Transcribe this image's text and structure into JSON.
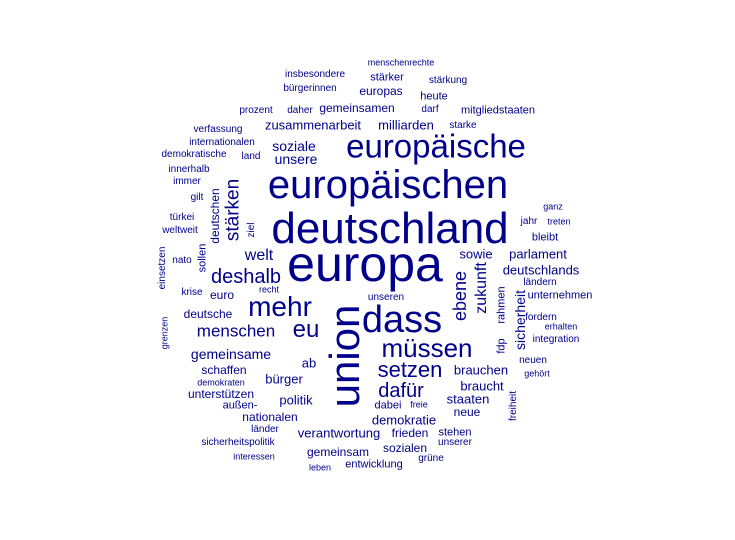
{
  "word_color": "#00008b",
  "background_color": "#ffffff",
  "words": [
    {
      "text": "europa",
      "rotated": false
    },
    {
      "text": "deutschland",
      "rotated": false
    },
    {
      "text": "europäischen",
      "rotated": false
    },
    {
      "text": "union",
      "rotated": true
    },
    {
      "text": "dass",
      "rotated": false
    },
    {
      "text": "europäische",
      "rotated": false
    },
    {
      "text": "müssen",
      "rotated": false
    },
    {
      "text": "mehr",
      "rotated": false
    },
    {
      "text": "eu",
      "rotated": false
    },
    {
      "text": "setzen",
      "rotated": false
    },
    {
      "text": "dafür",
      "rotated": false
    },
    {
      "text": "deshalb",
      "rotated": false
    },
    {
      "text": "stärken",
      "rotated": true
    },
    {
      "text": "menschen",
      "rotated": false
    },
    {
      "text": "ebene",
      "rotated": true
    },
    {
      "text": "zukunft",
      "rotated": true
    },
    {
      "text": "welt",
      "rotated": false
    },
    {
      "text": "gemeinsame",
      "rotated": false
    },
    {
      "text": "sicherheit",
      "rotated": true
    },
    {
      "text": "soziale",
      "rotated": false
    },
    {
      "text": "unsere",
      "rotated": false
    },
    {
      "text": "zusammenarbeit",
      "rotated": false
    },
    {
      "text": "milliarden",
      "rotated": false
    },
    {
      "text": "sowie",
      "rotated": false
    },
    {
      "text": "parlament",
      "rotated": false
    },
    {
      "text": "deutschlands",
      "rotated": false
    },
    {
      "text": "brauchen",
      "rotated": false
    },
    {
      "text": "braucht",
      "rotated": false
    },
    {
      "text": "staaten",
      "rotated": false
    },
    {
      "text": "demokratie",
      "rotated": false
    },
    {
      "text": "verantwortung",
      "rotated": false
    },
    {
      "text": "frieden",
      "rotated": false
    },
    {
      "text": "bürger",
      "rotated": false
    },
    {
      "text": "politik",
      "rotated": false
    },
    {
      "text": "unterstützen",
      "rotated": false
    },
    {
      "text": "schaffen",
      "rotated": false
    },
    {
      "text": "nationalen",
      "rotated": false
    },
    {
      "text": "gemeinsam",
      "rotated": false
    },
    {
      "text": "sozialen",
      "rotated": false
    },
    {
      "text": "entwicklung",
      "rotated": false
    },
    {
      "text": "neue",
      "rotated": false
    },
    {
      "text": "deutsche",
      "rotated": false
    },
    {
      "text": "euro",
      "rotated": false
    },
    {
      "text": "ab",
      "rotated": false
    },
    {
      "text": "gemeinsamen",
      "rotated": false
    },
    {
      "text": "europas",
      "rotated": false
    },
    {
      "text": "heute",
      "rotated": false
    },
    {
      "text": "stärker",
      "rotated": false
    },
    {
      "text": "stärkung",
      "rotated": false
    },
    {
      "text": "insbesondere",
      "rotated": false
    },
    {
      "text": "bürgerinnen",
      "rotated": false
    },
    {
      "text": "menschenrechte",
      "rotated": false
    },
    {
      "text": "prozent",
      "rotated": false
    },
    {
      "text": "daher",
      "rotated": false
    },
    {
      "text": "darf",
      "rotated": false
    },
    {
      "text": "mitgliedstaaten",
      "rotated": false
    },
    {
      "text": "starke",
      "rotated": false
    },
    {
      "text": "verfassung",
      "rotated": false
    },
    {
      "text": "internationalen",
      "rotated": false
    },
    {
      "text": "demokratische",
      "rotated": false
    },
    {
      "text": "land",
      "rotated": false
    },
    {
      "text": "innerhalb",
      "rotated": false
    },
    {
      "text": "immer",
      "rotated": false
    },
    {
      "text": "gilt",
      "rotated": false
    },
    {
      "text": "deutschen",
      "rotated": true
    },
    {
      "text": "ziel",
      "rotated": true
    },
    {
      "text": "türkei",
      "rotated": false
    },
    {
      "text": "weltweit",
      "rotated": false
    },
    {
      "text": "nato",
      "rotated": false
    },
    {
      "text": "sollen",
      "rotated": true
    },
    {
      "text": "einsetzen",
      "rotated": true
    },
    {
      "text": "krise",
      "rotated": false
    },
    {
      "text": "recht",
      "rotated": false
    },
    {
      "text": "unseren",
      "rotated": false
    },
    {
      "text": "grenzen",
      "rotated": true
    },
    {
      "text": "demokraten",
      "rotated": false
    },
    {
      "text": "außen-",
      "rotated": false
    },
    {
      "text": "dabei",
      "rotated": false
    },
    {
      "text": "freie",
      "rotated": false
    },
    {
      "text": "länder",
      "rotated": false
    },
    {
      "text": "sicherheitspolitik",
      "rotated": false
    },
    {
      "text": "interessen",
      "rotated": false
    },
    {
      "text": "leben",
      "rotated": false
    },
    {
      "text": "stehen",
      "rotated": false
    },
    {
      "text": "unserer",
      "rotated": false
    },
    {
      "text": "grüne",
      "rotated": false
    },
    {
      "text": "ganz",
      "rotated": false
    },
    {
      "text": "treten",
      "rotated": false
    },
    {
      "text": "jahr",
      "rotated": false
    },
    {
      "text": "bleibt",
      "rotated": false
    },
    {
      "text": "ländern",
      "rotated": false
    },
    {
      "text": "unternehmen",
      "rotated": false
    },
    {
      "text": "rahmen",
      "rotated": true
    },
    {
      "text": "fordern",
      "rotated": false
    },
    {
      "text": "erhalten",
      "rotated": false
    },
    {
      "text": "fdp",
      "rotated": true
    },
    {
      "text": "integration",
      "rotated": false
    },
    {
      "text": "neuen",
      "rotated": false
    },
    {
      "text": "gehört",
      "rotated": false
    },
    {
      "text": "freiheit",
      "rotated": true
    }
  ]
}
